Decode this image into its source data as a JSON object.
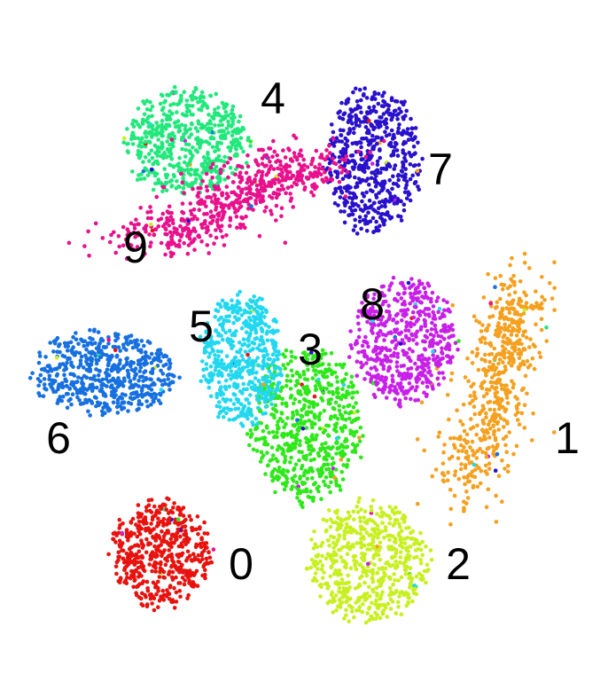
{
  "chart_data": {
    "type": "scatter",
    "title": "",
    "xlabel": "",
    "ylabel": "",
    "grid": false,
    "legend": "none",
    "clusters": [
      {
        "label": "0",
        "color": "#e8120e",
        "center": [
          182,
          624
        ],
        "spread": [
          58,
          62
        ],
        "count": 520,
        "shape": "ellipse"
      },
      {
        "label": "1",
        "color": "#f5a01e",
        "center": [
          555,
          450
        ],
        "spread": [
          55,
          130
        ],
        "count": 560,
        "shape": "band",
        "band": [
          [
            585,
            330
          ],
          [
            570,
            400
          ],
          [
            555,
            470
          ],
          [
            520,
            550
          ]
        ]
      },
      {
        "label": "2",
        "color": "#c8f020",
        "center": [
          415,
          632
        ],
        "spread": [
          70,
          70
        ],
        "count": 560,
        "shape": "ellipse"
      },
      {
        "label": "3",
        "color": "#2ee81a",
        "center": [
          345,
          480
        ],
        "spread": [
          65,
          90
        ],
        "count": 640,
        "shape": "ellipse"
      },
      {
        "label": "4",
        "color": "#22e87c",
        "center": [
          210,
          160
        ],
        "spread": [
          72,
          62
        ],
        "count": 560,
        "shape": "ellipse"
      },
      {
        "label": "5",
        "color": "#22d8f0",
        "center": [
          272,
          405
        ],
        "spread": [
          48,
          78
        ],
        "count": 520,
        "shape": "ellipse"
      },
      {
        "label": "6",
        "color": "#1670e0",
        "center": [
          118,
          420
        ],
        "spread": [
          85,
          48
        ],
        "count": 560,
        "shape": "ellipse"
      },
      {
        "label": "7",
        "color": "#2810cc",
        "center": [
          420,
          180
        ],
        "spread": [
          55,
          85
        ],
        "count": 560,
        "shape": "ellipse"
      },
      {
        "label": "8",
        "color": "#c820e8",
        "center": [
          455,
          385
        ],
        "spread": [
          62,
          72
        ],
        "count": 560,
        "shape": "ellipse"
      },
      {
        "label": "9",
        "color": "#e8108c",
        "center": [
          255,
          240
        ],
        "spread": [
          100,
          55
        ],
        "count": 600,
        "shape": "band",
        "band": [
          [
            175,
            275
          ],
          [
            240,
            240
          ],
          [
            300,
            205
          ],
          [
            345,
            175
          ]
        ]
      }
    ],
    "label_positions": {
      "0": [
        272,
        640
      ],
      "1": [
        640,
        498
      ],
      "2": [
        517,
        640
      ],
      "3": [
        350,
        398
      ],
      "4": [
        308,
        115
      ],
      "5": [
        227,
        372
      ],
      "6": [
        66,
        498
      ],
      "7": [
        497,
        195
      ],
      "8": [
        420,
        347
      ],
      "9": [
        153,
        283
      ]
    }
  }
}
